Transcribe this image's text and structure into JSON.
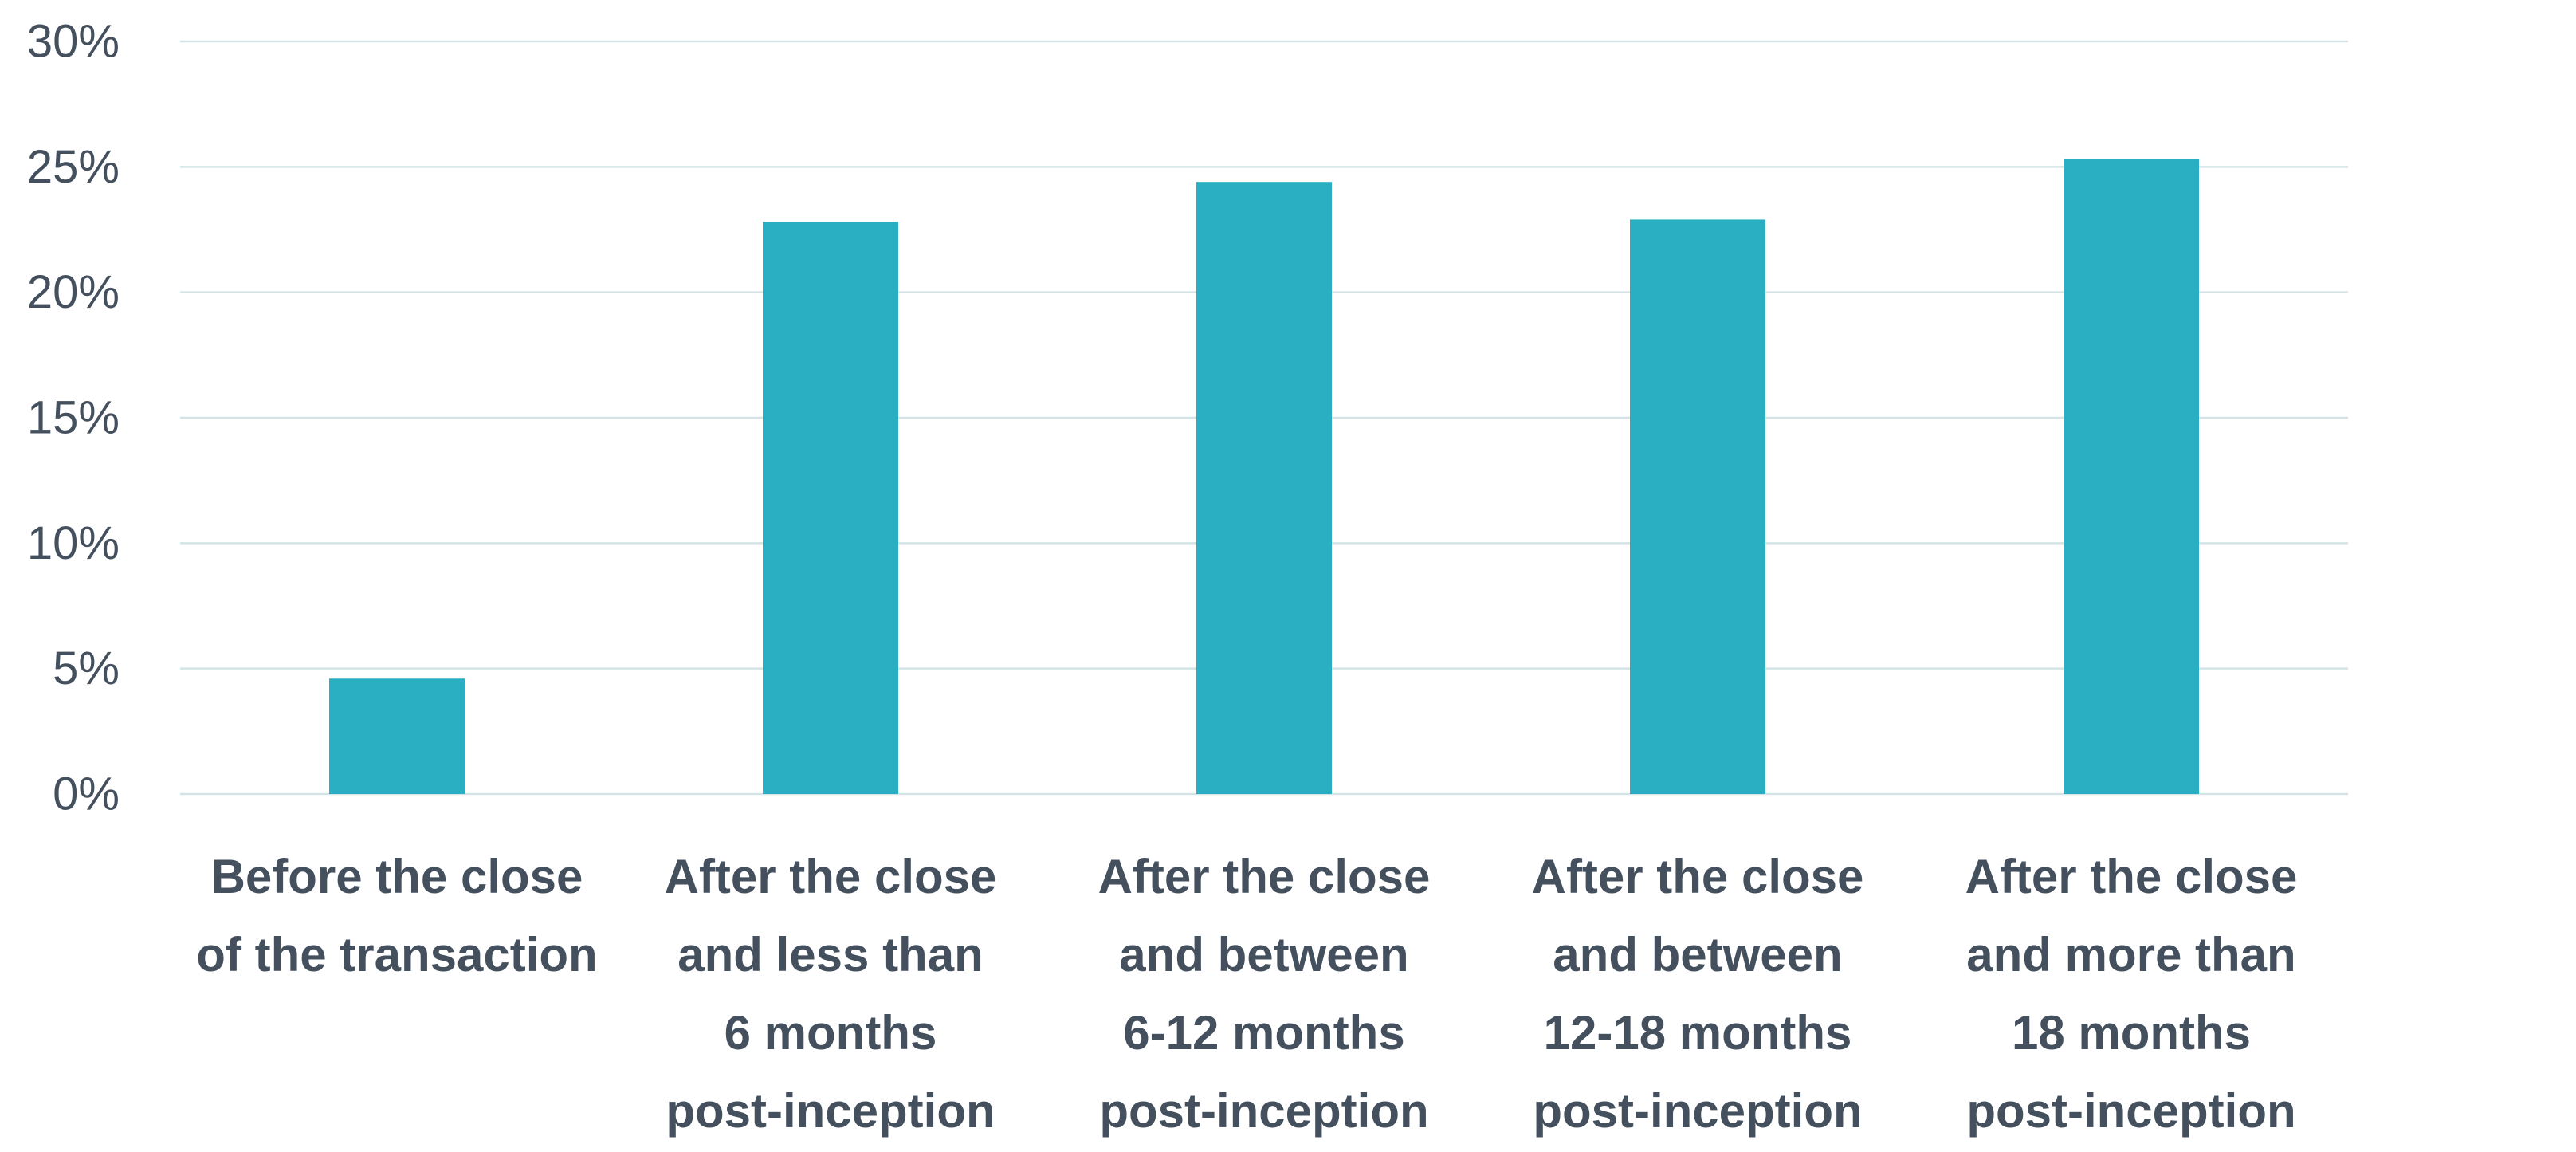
{
  "chart_data": {
    "type": "bar",
    "title": "",
    "xlabel": "",
    "ylabel": "",
    "ylim": [
      0,
      30
    ],
    "yticks": [
      0,
      5,
      10,
      15,
      20,
      25,
      30
    ],
    "ytick_labels": [
      "0%",
      "5%",
      "10%",
      "15%",
      "20%",
      "25%",
      "30%"
    ],
    "grid": true,
    "categories": [
      "Before the close of the transaction",
      "After the close and less than 6 months post-inception",
      "After the close and between 6-12 months post-inception",
      "After the close and between 12-18 months post-inception",
      "After the close and more than 18 months post-inception"
    ],
    "category_label_lines": [
      [
        "Before the close",
        "of the transaction"
      ],
      [
        "After the close",
        "and less than",
        "6 months",
        "post-inception"
      ],
      [
        "After the close",
        "and between",
        "6-12 months",
        "post-inception"
      ],
      [
        "After the close",
        "and between",
        "12-18 months",
        "post-inception"
      ],
      [
        "After the close",
        "and more than",
        "18 months",
        "post-inception"
      ]
    ],
    "values": [
      4.6,
      22.8,
      24.4,
      22.9,
      25.3
    ],
    "colors": {
      "bar": "#2AAFC2",
      "grid": "#D3E4E6",
      "text": "#44505D"
    }
  }
}
